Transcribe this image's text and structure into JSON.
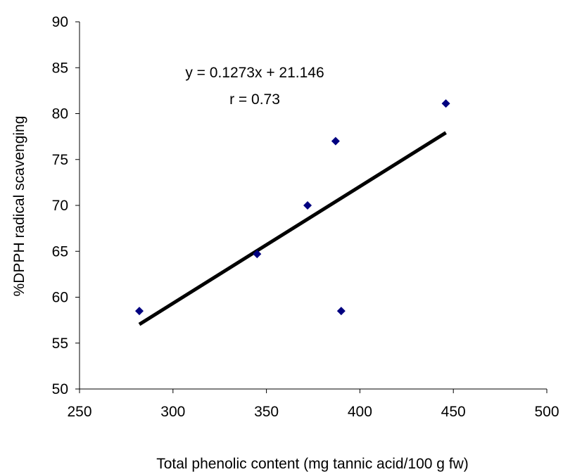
{
  "chart_data": {
    "type": "scatter",
    "title": "",
    "xlabel": "Total phenolic content (mg tannic acid/100 g fw)",
    "ylabel": "%DPPH radical scavenging",
    "xlim": [
      250,
      500
    ],
    "ylim": [
      50,
      90
    ],
    "xticks": [
      250,
      300,
      350,
      400,
      450,
      500
    ],
    "yticks": [
      50,
      55,
      60,
      65,
      70,
      75,
      80,
      85,
      90
    ],
    "grid": false,
    "legend": "none",
    "marker_color": "#000080",
    "line_color": "#000000",
    "points": [
      {
        "x": 282,
        "y": 58.5
      },
      {
        "x": 345,
        "y": 64.7
      },
      {
        "x": 372,
        "y": 70.0
      },
      {
        "x": 387,
        "y": 77.0
      },
      {
        "x": 390,
        "y": 58.5
      },
      {
        "x": 446,
        "y": 81.1
      }
    ],
    "trendline": {
      "slope": 0.1273,
      "intercept": 21.146,
      "x_start": 282,
      "x_end": 446
    },
    "annotations": {
      "equation": "y = 0.1273x + 21.146",
      "r_value": "r = 0.73"
    }
  }
}
